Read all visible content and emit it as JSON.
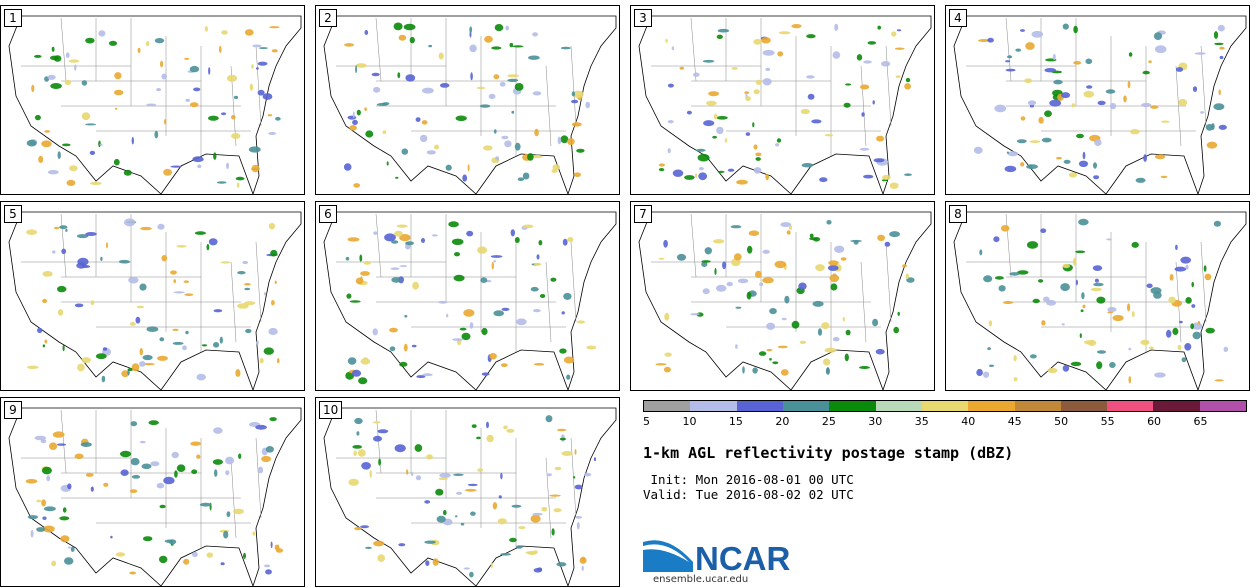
{
  "panels": [
    {
      "label": "1"
    },
    {
      "label": "2"
    },
    {
      "label": "3"
    },
    {
      "label": "4"
    },
    {
      "label": "5"
    },
    {
      "label": "6"
    },
    {
      "label": "7"
    },
    {
      "label": "8"
    },
    {
      "label": "9"
    },
    {
      "label": "10"
    }
  ],
  "colorbar": {
    "colors": [
      "#a0a0a0",
      "#b4bce8",
      "#5864d4",
      "#4a9098",
      "#0a8a0a",
      "#b8dab8",
      "#e8d870",
      "#eaa830",
      "#c08838",
      "#8c5a3c",
      "#f05080",
      "#6a1a38",
      "#b050a8"
    ],
    "ticks": [
      "5",
      "10",
      "15",
      "20",
      "25",
      "30",
      "35",
      "40",
      "45",
      "50",
      "55",
      "60",
      "65"
    ]
  },
  "title": "1-km AGL reflectivity postage stamp (dBZ)",
  "init": " Init: Mon 2016-08-01 00 UTC",
  "valid": "Valid: Tue 2016-08-02 02 UTC",
  "logo": {
    "text": "NCAR",
    "colors": {
      "swoosh": "#1a7cc4",
      "text": "#1a5fa8"
    }
  },
  "url": "ensemble.ucar.edu"
}
